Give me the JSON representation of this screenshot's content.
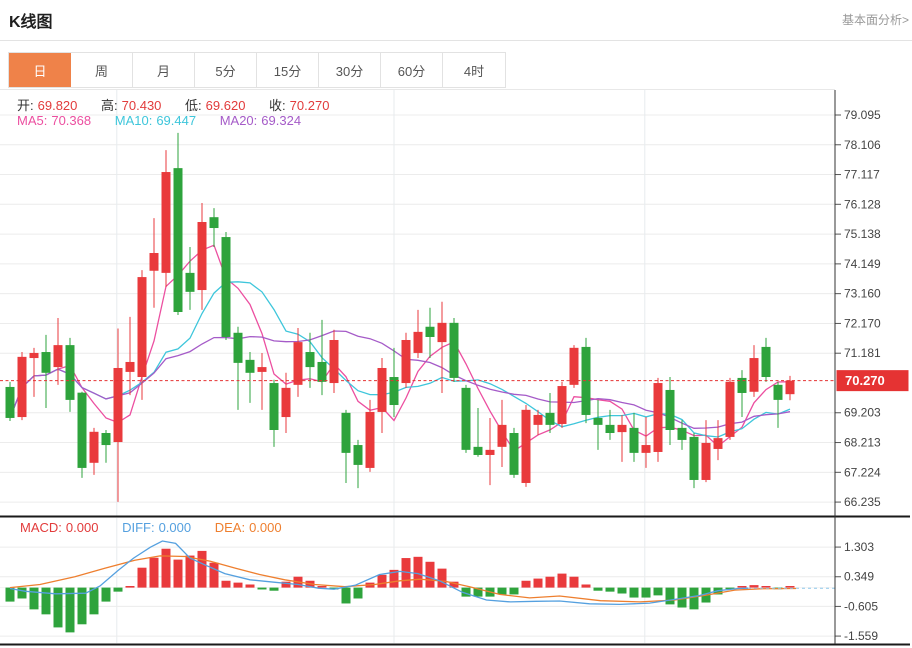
{
  "header": {
    "title": "K线图",
    "link": "基本面分析>"
  },
  "tabs": {
    "items": [
      "日",
      "周",
      "月",
      "5分",
      "15分",
      "30分",
      "60分",
      "4时"
    ],
    "active": "日"
  },
  "ohlc": {
    "o_label": "开:",
    "o": "69.820",
    "h_label": "高:",
    "h": "70.430",
    "l_label": "低:",
    "l": "69.620",
    "c_label": "收:",
    "c": "70.270"
  },
  "ma": {
    "ma5_label": "MA5:",
    "ma5_value": "70.368",
    "ma10_label": "MA10:",
    "ma10_value": "69.447",
    "ma20_label": "MA20:",
    "ma20_value": "69.324"
  },
  "macd_header": {
    "macd_label": "MACD:",
    "macd_value": "0.000",
    "diff_label": "DIFF:",
    "diff_value": "0.000",
    "dea_label": "DEA:",
    "dea_value": "0.000"
  },
  "colors": {
    "up": "#e93a3c",
    "down": "#2ea33c",
    "ma5": "#ec4fa0",
    "ma10": "#3ec6db",
    "ma20": "#a55bc8",
    "diff": "#55a0df",
    "dea": "#ee7f2f",
    "tab_active_bg": "#ef8249",
    "price_line": "#e53333",
    "price_tag_bg": "#e53333",
    "axis_text": "#444",
    "grid": "#ececec",
    "vgrid": "#e7ebee",
    "label_dark": "#333",
    "value_red": "#e23b3b"
  },
  "chart_data": {
    "type": "candlestick+macd",
    "title": "K线图 (daily)",
    "legend": [
      "MA5",
      "MA10",
      "MA20",
      "MACD",
      "DIFF",
      "DEA"
    ],
    "grid": true,
    "main": {
      "y_tick_labels": [
        "79.095",
        "78.106",
        "77.117",
        "76.128",
        "75.138",
        "74.149",
        "73.160",
        "72.170",
        "71.181",
        "69.203",
        "68.213",
        "67.224",
        "66.235"
      ],
      "ylim": [
        65.9,
        79.5
      ],
      "current_price": 70.27,
      "current_price_label": "70.270",
      "candles_ohlc": [
        [
          70.06,
          70.23,
          68.93,
          69.03
        ],
        [
          69.06,
          71.22,
          68.96,
          71.06
        ],
        [
          71.02,
          71.36,
          69.73,
          71.19
        ],
        [
          71.22,
          71.79,
          69.36,
          70.53
        ],
        [
          70.72,
          72.35,
          70.13,
          71.45
        ],
        [
          71.45,
          71.69,
          69.23,
          69.63
        ],
        [
          69.87,
          69.9,
          67.04,
          67.37
        ],
        [
          67.54,
          68.7,
          67.14,
          68.57
        ],
        [
          68.53,
          68.63,
          67.54,
          68.13
        ],
        [
          68.23,
          72.0,
          66.24,
          70.69
        ],
        [
          70.56,
          72.39,
          69.79,
          70.89
        ],
        [
          70.39,
          73.94,
          69.63,
          73.71
        ],
        [
          73.92,
          75.67,
          72.69,
          74.51
        ],
        [
          73.85,
          77.93,
          73.38,
          77.2
        ],
        [
          77.33,
          78.5,
          72.45,
          72.55
        ],
        [
          73.85,
          74.71,
          72.62,
          73.22
        ],
        [
          73.28,
          76.17,
          72.62,
          75.54
        ],
        [
          75.7,
          76.0,
          74.71,
          75.34
        ],
        [
          75.04,
          75.21,
          71.62,
          71.72
        ],
        [
          71.86,
          72.06,
          69.3,
          70.86
        ],
        [
          70.96,
          71.22,
          69.53,
          70.53
        ],
        [
          70.56,
          71.19,
          69.3,
          70.72
        ],
        [
          70.19,
          70.3,
          68.07,
          68.63
        ],
        [
          69.06,
          70.53,
          68.53,
          70.03
        ],
        [
          70.13,
          72.02,
          69.73,
          71.55
        ],
        [
          71.22,
          71.86,
          70.03,
          70.72
        ],
        [
          70.89,
          72.29,
          69.79,
          70.23
        ],
        [
          70.19,
          71.96,
          69.86,
          71.62
        ],
        [
          69.2,
          69.3,
          66.87,
          67.87
        ],
        [
          68.13,
          68.3,
          66.7,
          67.47
        ],
        [
          67.37,
          69.63,
          67.24,
          69.23
        ],
        [
          69.23,
          71.02,
          68.53,
          70.69
        ],
        [
          70.39,
          71.36,
          69.06,
          69.46
        ],
        [
          70.19,
          71.86,
          70.03,
          71.62
        ],
        [
          71.19,
          72.62,
          71.02,
          71.89
        ],
        [
          72.06,
          72.69,
          71.02,
          71.72
        ],
        [
          71.55,
          72.89,
          69.86,
          72.19
        ],
        [
          72.19,
          72.35,
          70.23,
          70.36
        ],
        [
          70.03,
          70.13,
          67.87,
          67.97
        ],
        [
          68.07,
          69.36,
          67.74,
          67.8
        ],
        [
          67.8,
          69.03,
          66.8,
          67.97
        ],
        [
          68.07,
          69.63,
          67.4,
          68.8
        ],
        [
          68.53,
          68.7,
          67.04,
          67.14
        ],
        [
          66.87,
          69.46,
          66.74,
          69.3
        ],
        [
          68.8,
          69.3,
          68.46,
          69.13
        ],
        [
          69.2,
          69.86,
          68.53,
          68.8
        ],
        [
          68.83,
          70.23,
          68.7,
          70.09
        ],
        [
          70.13,
          71.45,
          70.03,
          71.36
        ],
        [
          71.39,
          71.69,
          68.86,
          69.13
        ],
        [
          69.03,
          69.63,
          67.97,
          68.8
        ],
        [
          68.8,
          69.3,
          68.3,
          68.53
        ],
        [
          68.56,
          69.13,
          67.57,
          68.8
        ],
        [
          68.7,
          69.2,
          67.57,
          67.87
        ],
        [
          67.87,
          69.06,
          67.37,
          68.13
        ],
        [
          67.9,
          70.36,
          67.57,
          70.19
        ],
        [
          69.96,
          70.39,
          68.13,
          68.63
        ],
        [
          68.7,
          68.96,
          67.97,
          68.3
        ],
        [
          68.4,
          68.53,
          66.7,
          66.97
        ],
        [
          66.97,
          68.96,
          66.9,
          68.2
        ],
        [
          68.0,
          68.96,
          67.63,
          68.36
        ],
        [
          68.4,
          70.36,
          68.3,
          70.23
        ],
        [
          70.36,
          70.62,
          69.06,
          69.86
        ],
        [
          69.9,
          71.45,
          69.73,
          71.02
        ],
        [
          71.39,
          71.69,
          70.23,
          70.39
        ],
        [
          70.13,
          70.23,
          68.7,
          69.63
        ],
        [
          69.82,
          70.43,
          69.62,
          70.27
        ]
      ],
      "ma_periods": [
        5,
        10,
        20
      ],
      "vertical_gridlines_at_candle": [
        8.9,
        32.0,
        52.9
      ]
    },
    "macd": {
      "y_tick_labels": [
        "1.303",
        "0.349",
        "-0.605",
        "-1.559"
      ],
      "hist": [
        -0.45,
        -0.35,
        -0.7,
        -0.86,
        -1.28,
        -1.44,
        -1.18,
        -0.86,
        -0.45,
        -0.13,
        0.05,
        0.64,
        0.96,
        1.25,
        0.9,
        1.03,
        1.18,
        0.8,
        0.22,
        0.16,
        0.1,
        -0.06,
        -0.1,
        0.19,
        0.35,
        0.22,
        0.03,
        -0.06,
        -0.51,
        -0.35,
        0.16,
        0.41,
        0.57,
        0.95,
        0.99,
        0.83,
        0.61,
        0.19,
        -0.29,
        -0.29,
        -0.29,
        -0.22,
        -0.22,
        0.22,
        0.29,
        0.35,
        0.45,
        0.35,
        0.1,
        -0.1,
        -0.13,
        -0.19,
        -0.32,
        -0.32,
        -0.25,
        -0.54,
        -0.64,
        -0.7,
        -0.48,
        -0.22,
        -0.05,
        0.02,
        0.08,
        0.02,
        -0.05,
        0.02
      ],
      "diff_line": [
        [
          0,
          -0.03
        ],
        [
          1.3,
          -0.12
        ],
        [
          3.8,
          -0.2
        ],
        [
          6.3,
          -0.18
        ],
        [
          7.5,
          0.05
        ],
        [
          9,
          0.55
        ],
        [
          10.3,
          0.95
        ],
        [
          11.7,
          1.3
        ],
        [
          12.7,
          1.5
        ],
        [
          13.8,
          1.42
        ],
        [
          15,
          0.95
        ],
        [
          16.3,
          0.72
        ],
        [
          17.9,
          0.45
        ],
        [
          20,
          0.25
        ],
        [
          22.1,
          0.17
        ],
        [
          24,
          0.1
        ],
        [
          25.7,
          -0.02
        ],
        [
          27,
          -0.05
        ],
        [
          28.8,
          0.08
        ],
        [
          30.8,
          0.42
        ],
        [
          32.5,
          0.52
        ],
        [
          34,
          0.45
        ],
        [
          35.8,
          0.22
        ],
        [
          37.7,
          -0.15
        ],
        [
          39.7,
          -0.4
        ],
        [
          41.7,
          -0.46
        ],
        [
          43.8,
          -0.44
        ],
        [
          45.8,
          -0.43
        ],
        [
          48.3,
          -0.52
        ],
        [
          50.8,
          -0.54
        ],
        [
          53.3,
          -0.5
        ],
        [
          55.4,
          -0.38
        ],
        [
          57.5,
          -0.25
        ],
        [
          59,
          -0.1
        ],
        [
          60.7,
          -0.03
        ],
        [
          61.5,
          -0.02
        ]
      ],
      "diff_dash_from_candle": 61.5,
      "dea_line": [
        [
          0,
          0.0
        ],
        [
          2.5,
          0.1
        ],
        [
          5.4,
          0.35
        ],
        [
          7.9,
          0.62
        ],
        [
          10.4,
          0.88
        ],
        [
          12.5,
          1.02
        ],
        [
          14.6,
          1.0
        ],
        [
          16.7,
          0.85
        ],
        [
          18.8,
          0.62
        ],
        [
          20.8,
          0.42
        ],
        [
          22.9,
          0.25
        ],
        [
          25.4,
          0.1
        ],
        [
          27.9,
          0.03
        ],
        [
          30.4,
          0.1
        ],
        [
          32.5,
          0.22
        ],
        [
          34.2,
          0.27
        ],
        [
          36.3,
          0.2
        ],
        [
          38.3,
          0.03
        ],
        [
          40.8,
          -0.22
        ],
        [
          43.3,
          -0.33
        ],
        [
          45.8,
          -0.27
        ],
        [
          49.2,
          -0.42
        ],
        [
          52.5,
          -0.46
        ],
        [
          55.4,
          -0.4
        ],
        [
          57.9,
          -0.25
        ],
        [
          60.4,
          -0.08
        ],
        [
          62.5,
          -0.04
        ],
        [
          65.5,
          -0.03
        ]
      ]
    }
  }
}
